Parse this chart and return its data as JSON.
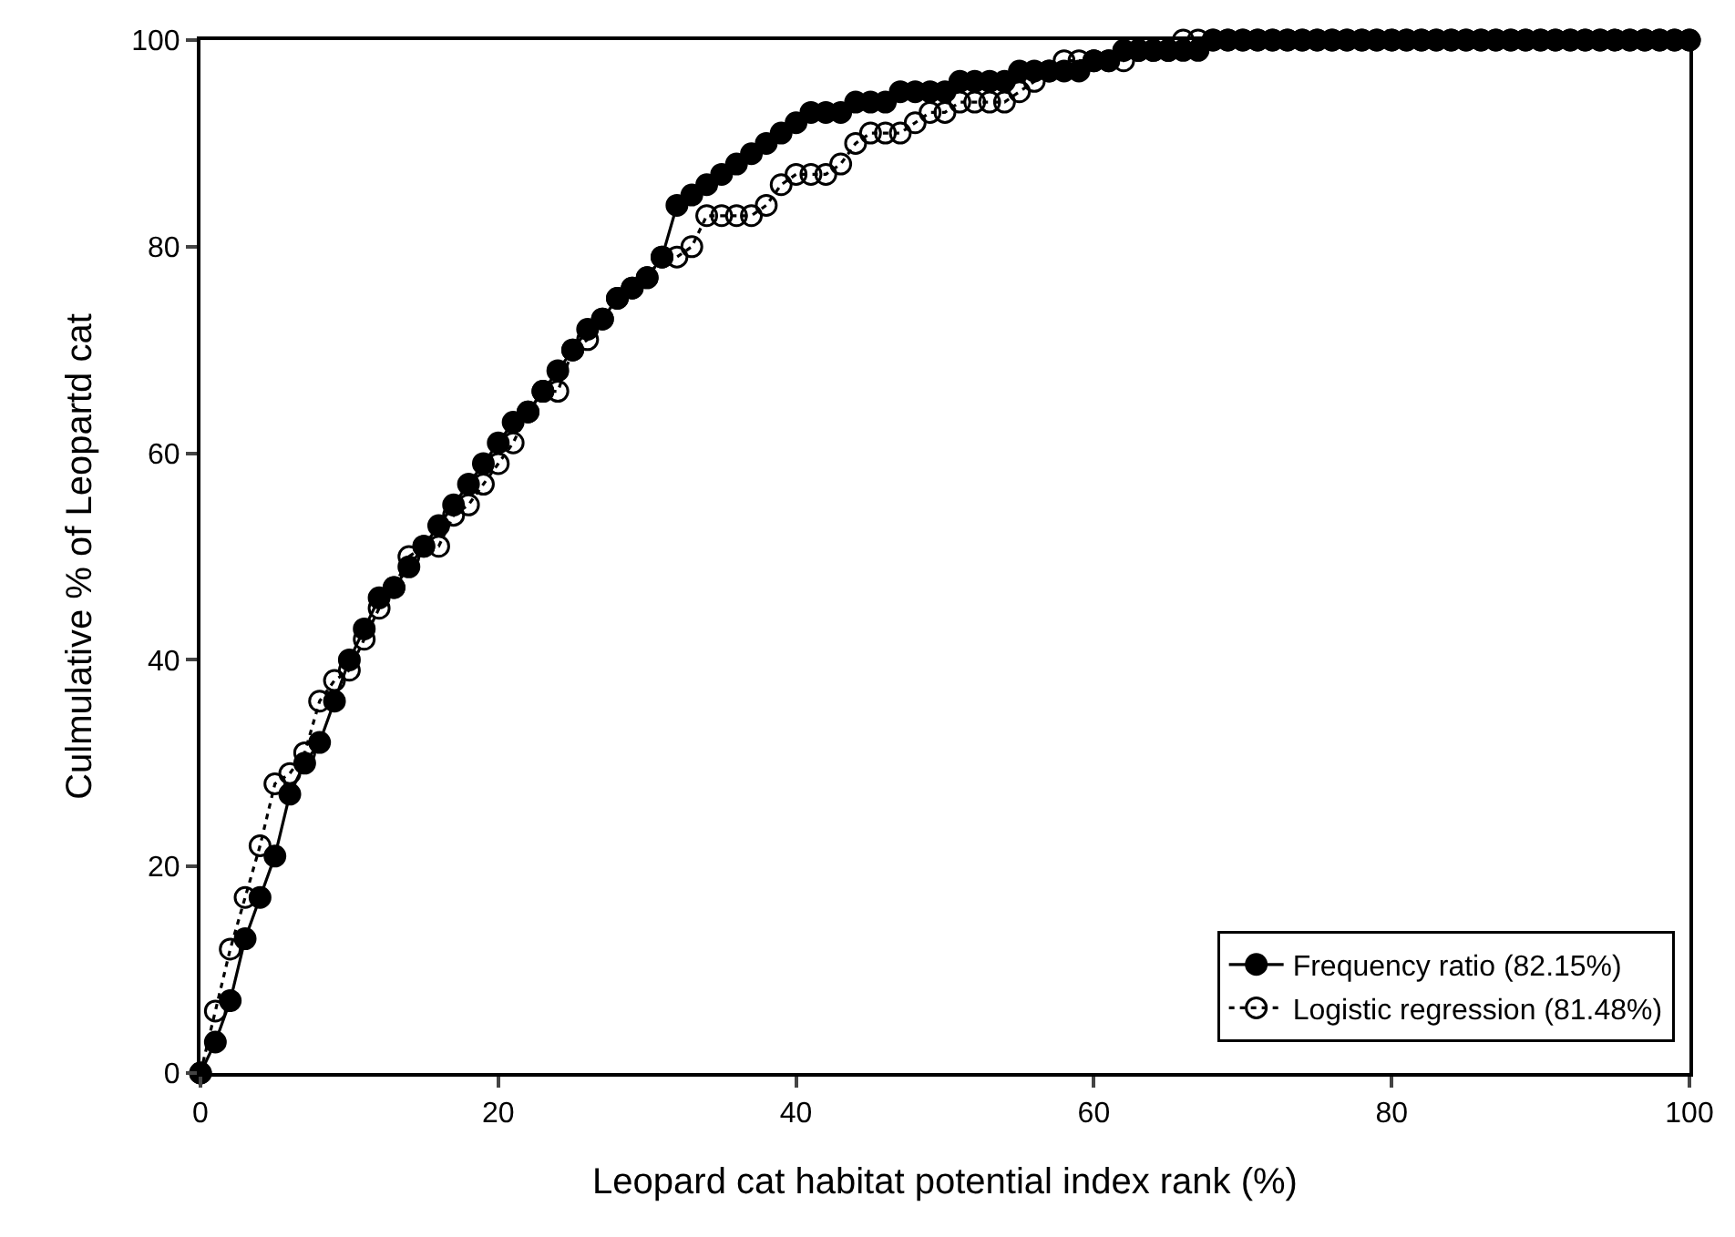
{
  "chart_data": {
    "type": "line",
    "xlabel": "Leopard cat habitat potential index rank (%)",
    "ylabel": "Culmulative % of Leopartd cat",
    "x": [
      0,
      1,
      2,
      3,
      4,
      5,
      6,
      7,
      8,
      9,
      10,
      11,
      12,
      13,
      14,
      15,
      16,
      17,
      18,
      19,
      20,
      21,
      22,
      23,
      24,
      25,
      26,
      27,
      28,
      29,
      30,
      31,
      32,
      33,
      34,
      35,
      36,
      37,
      38,
      39,
      40,
      41,
      42,
      43,
      44,
      45,
      46,
      47,
      48,
      49,
      50,
      51,
      52,
      53,
      54,
      55,
      56,
      57,
      58,
      59,
      60,
      61,
      62,
      63,
      64,
      65,
      66,
      67,
      68,
      69,
      70,
      71,
      72,
      73,
      74,
      75,
      76,
      77,
      78,
      79,
      80,
      81,
      82,
      83,
      84,
      85,
      86,
      87,
      88,
      89,
      90,
      91,
      92,
      93,
      94,
      95,
      96,
      97,
      98,
      99,
      100
    ],
    "series": [
      {
        "name": "Frequency ratio (82.15%)",
        "color": "#000000",
        "line_style": "solid",
        "values": [
          0,
          3,
          7,
          13,
          17,
          21,
          27,
          30,
          32,
          36,
          40,
          43,
          46,
          47,
          49,
          51,
          53,
          55,
          57,
          59,
          61,
          63,
          64,
          66,
          68,
          70,
          72,
          73,
          75,
          76,
          77,
          79,
          84,
          85,
          86,
          87,
          88,
          89,
          90,
          91,
          92,
          93,
          93,
          93,
          94,
          94,
          94,
          95,
          95,
          95,
          95,
          96,
          96,
          96,
          96,
          97,
          97,
          97,
          97,
          97,
          98,
          98,
          99,
          99,
          99,
          99,
          99,
          99,
          100,
          100,
          100,
          100,
          100,
          100,
          100,
          100,
          100,
          100,
          100,
          100,
          100,
          100,
          100,
          100,
          100,
          100,
          100,
          100,
          100,
          100,
          100,
          100,
          100,
          100,
          100,
          100,
          100,
          100,
          100,
          100,
          100
        ]
      },
      {
        "name": "Logistic regression (81.48%)",
        "color": "#000000",
        "line_style": "dotted",
        "values": [
          0,
          6,
          12,
          17,
          22,
          28,
          29,
          31,
          36,
          38,
          39,
          42,
          45,
          47,
          50,
          51,
          51,
          54,
          55,
          57,
          59,
          61,
          64,
          66,
          66,
          70,
          71,
          73,
          75,
          76,
          77,
          79,
          79,
          80,
          83,
          83,
          83,
          83,
          84,
          86,
          87,
          87,
          87,
          88,
          90,
          91,
          91,
          91,
          92,
          93,
          93,
          94,
          94,
          94,
          94,
          95,
          96,
          97,
          98,
          98,
          98,
          98,
          98,
          99,
          99,
          99,
          100,
          100,
          100,
          100,
          100,
          100,
          100,
          100,
          100,
          100,
          100,
          100,
          100,
          100,
          100,
          100,
          100,
          100,
          100,
          100,
          100,
          100,
          100,
          100,
          100,
          100,
          100,
          100,
          100,
          100,
          100,
          100,
          100,
          100,
          100
        ]
      }
    ],
    "xlim": [
      0,
      100
    ],
    "xticks": [
      0,
      20,
      40,
      60,
      80,
      100
    ],
    "ylim": [
      0,
      100
    ],
    "yticks": [
      0,
      20,
      40,
      60,
      80,
      100
    ],
    "legend": "bottom right",
    "marker": "circle"
  }
}
